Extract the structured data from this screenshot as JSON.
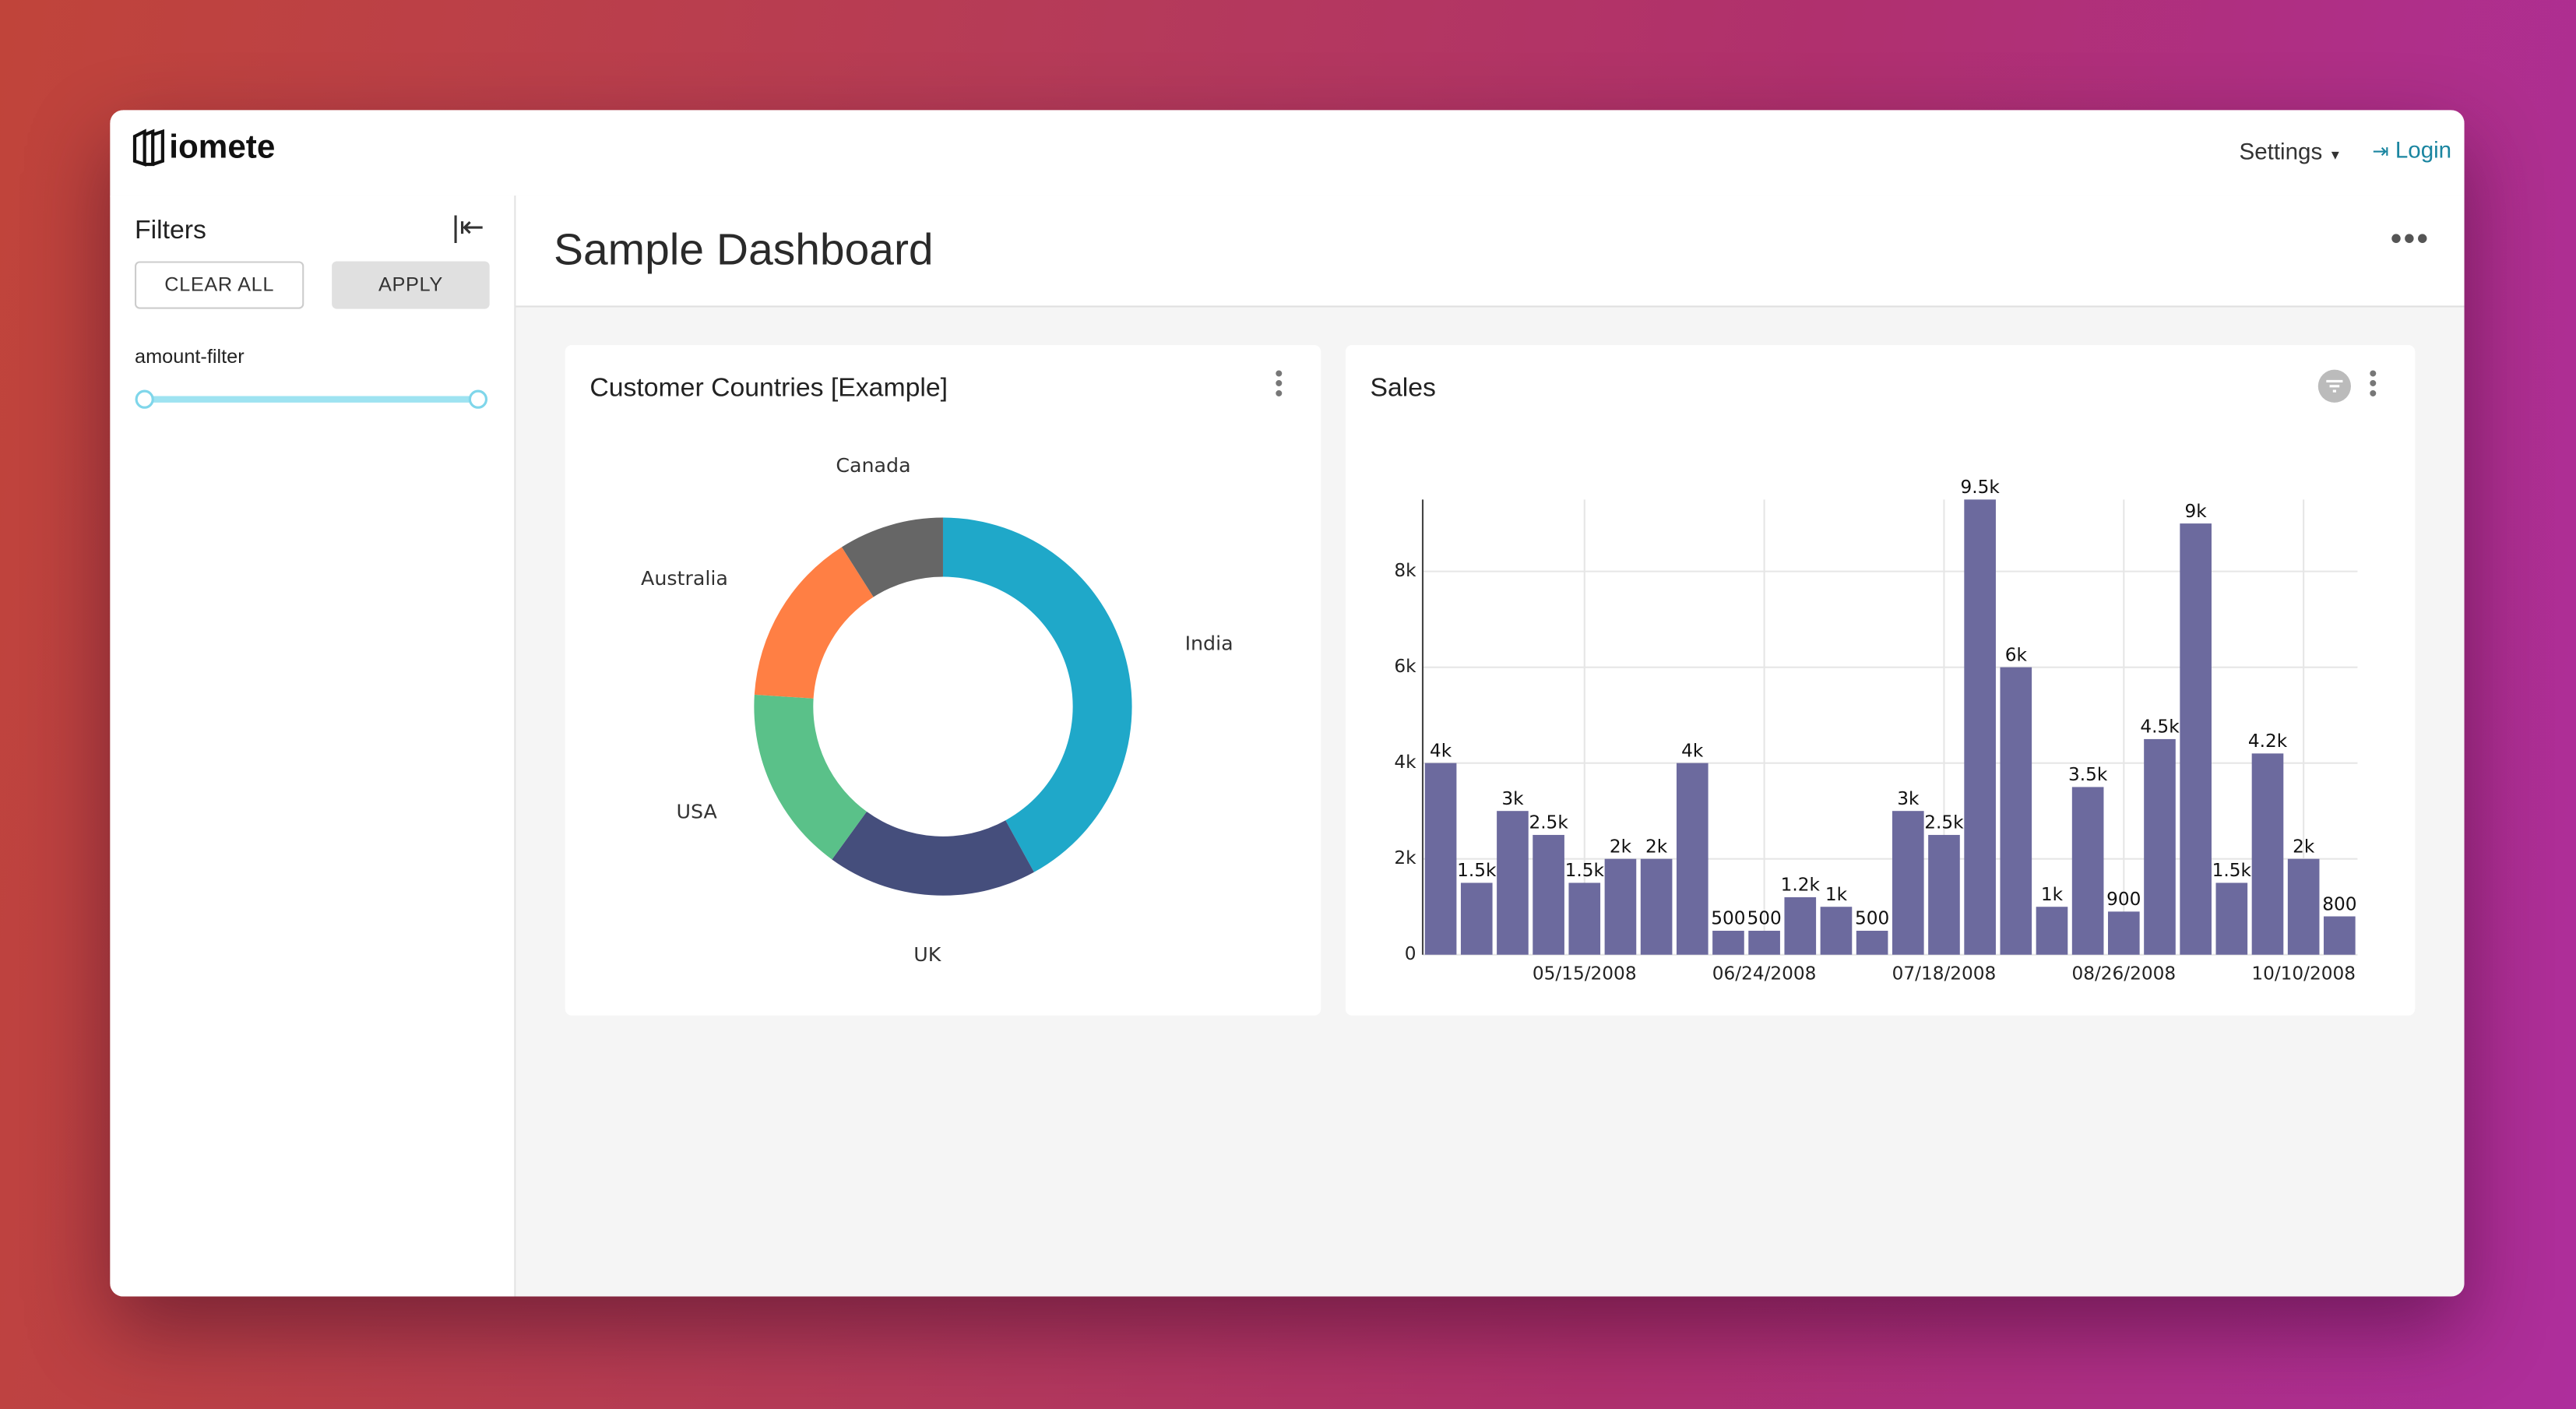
{
  "header": {
    "logo": "iomete",
    "settings": "Settings",
    "login": "Login"
  },
  "sidebar": {
    "title": "Filters",
    "clear_all": "CLEAR ALL",
    "apply": "APPLY",
    "filter_label": "amount-filter"
  },
  "dashboard": {
    "title": "Sample Dashboard"
  },
  "chart_data": [
    {
      "type": "pie",
      "title": "Customer Countries [Example]",
      "categories": [
        "India",
        "UK",
        "USA",
        "Australia",
        "Canada"
      ],
      "values": [
        42,
        18,
        16,
        15,
        9
      ],
      "colors": [
        "#1fa8c9",
        "#454e7c",
        "#5ac189",
        "#ff7f44",
        "#666666"
      ],
      "donut": true
    },
    {
      "type": "bar",
      "title": "Sales",
      "categories": [
        null,
        null,
        null,
        null,
        "05/15/2008",
        null,
        null,
        null,
        null,
        "06/24/2008",
        null,
        null,
        null,
        null,
        "07/18/2008",
        null,
        null,
        null,
        null,
        "08/26/2008",
        null,
        null,
        null,
        null,
        "10/10/2008",
        null
      ],
      "values": [
        4000,
        1500,
        3000,
        2500,
        1500,
        2000,
        2000,
        4000,
        500,
        500,
        1200,
        1000,
        500,
        3000,
        2500,
        9500,
        6000,
        1000,
        3500,
        900,
        4500,
        9000,
        1500,
        4200,
        2000,
        800
      ],
      "value_labels": [
        "4k",
        "1.5k",
        "3k",
        "2.5k",
        "1.5k",
        "2k",
        "2k",
        "4k",
        "500",
        "500",
        "1.2k",
        "1k",
        "500",
        "3k",
        "2.5k",
        "9.5k",
        "6k",
        "1k",
        "3.5k",
        "900",
        "4.5k",
        "9k",
        "1.5k",
        "4.2k",
        "2k",
        "800"
      ],
      "color": "#6c6a9e",
      "ylim": [
        0,
        9500
      ],
      "yticks": [
        0,
        {
          "value": 2000,
          "label": "2k"
        },
        {
          "value": 4000,
          "label": "4k"
        },
        {
          "value": 6000,
          "label": "6k"
        },
        {
          "value": 8000,
          "label": "8k"
        }
      ],
      "grid": true
    }
  ]
}
